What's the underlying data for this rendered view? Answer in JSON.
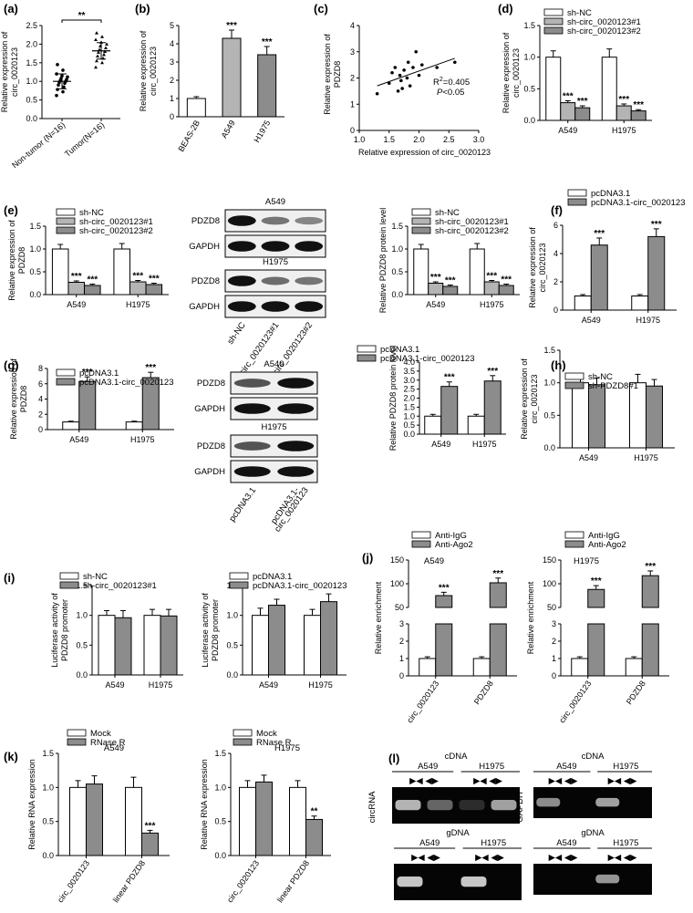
{
  "palette": {
    "white": "#ffffff",
    "light": "#b4b4b4",
    "dark": "#8c8c8c",
    "axis": "#000000",
    "gel_bg": "#050505",
    "band": "#dcdcdc"
  },
  "charts": {
    "a": {
      "type": "scatter",
      "panel": "(a)",
      "categories": [
        "Non-tumor (N=16)",
        "Tumor(N=16)"
      ],
      "ylabel": "Relative expression of circ_0020123",
      "yticks": [
        0,
        0.5,
        1.0,
        1.5,
        2.0,
        2.5
      ],
      "ylim": [
        0,
        2.5
      ],
      "means": [
        1.0,
        1.82
      ],
      "sd": [
        0.2,
        0.22
      ],
      "points": [
        [
          0.62,
          0.72,
          0.78,
          0.85,
          0.9,
          0.95,
          0.97,
          1.0,
          1.02,
          1.05,
          1.08,
          1.12,
          1.15,
          1.2,
          1.3,
          1.45
        ],
        [
          1.38,
          1.5,
          1.55,
          1.62,
          1.68,
          1.72,
          1.78,
          1.8,
          1.85,
          1.9,
          1.95,
          2.0,
          2.05,
          2.12,
          2.2,
          2.3
        ]
      ],
      "sig": [
        "**"
      ]
    },
    "b": {
      "type": "bar",
      "panel": "(b)",
      "categories": [
        "BEAS-2B",
        "A549",
        "H1975"
      ],
      "values": [
        1.0,
        4.3,
        3.4
      ],
      "errors": [
        0.1,
        0.45,
        0.45
      ],
      "colors": [
        "white",
        "light",
        "dark"
      ],
      "ylabel": "Relative expression of circ_0020123",
      "yticks": [
        0,
        1,
        2,
        3,
        4,
        5
      ],
      "ylim": [
        0,
        5
      ],
      "sig": [
        "",
        "***",
        "***"
      ]
    },
    "c": {
      "type": "scatter",
      "panel": "(c)",
      "xlabel": "Relative expression of circ_0020123",
      "ylabel": "Relative expression of PDZD8",
      "xticks": [
        1.0,
        1.5,
        2.0,
        2.5,
        3.0
      ],
      "yticks": [
        0,
        1,
        2,
        3,
        4
      ],
      "xlim": [
        1.0,
        3.0
      ],
      "ylim": [
        0,
        4
      ],
      "points": [
        [
          1.3,
          1.4
        ],
        [
          1.5,
          1.8
        ],
        [
          1.55,
          2.2
        ],
        [
          1.6,
          2.4
        ],
        [
          1.65,
          1.5
        ],
        [
          1.68,
          2.1
        ],
        [
          1.7,
          1.9
        ],
        [
          1.72,
          1.6
        ],
        [
          1.75,
          2.3
        ],
        [
          1.8,
          2.0
        ],
        [
          1.82,
          2.6
        ],
        [
          1.85,
          1.7
        ],
        [
          1.9,
          2.4
        ],
        [
          1.95,
          3.0
        ],
        [
          2.0,
          2.1
        ],
        [
          2.05,
          2.5
        ],
        [
          2.3,
          2.4
        ],
        [
          2.6,
          2.6
        ]
      ],
      "fit": [
        [
          1.3,
          1.7
        ],
        [
          2.6,
          2.75
        ]
      ],
      "r2_prefix": "R",
      "r2_sup": "2",
      "r2_value": "=0.405",
      "p_italic": "P",
      "p_rest": "<0.05"
    },
    "d": {
      "type": "bar",
      "panel": "(d)",
      "categories": [
        "A549",
        "H1975"
      ],
      "ylabel": "Relative expression of circ_0020123",
      "yticks": [
        0,
        0.5,
        1.0,
        1.5
      ],
      "ylim": [
        0,
        1.5
      ],
      "series": [
        {
          "name": "sh-NC",
          "values": [
            1.0,
            1.0
          ],
          "errors": [
            0.1,
            0.13
          ],
          "color": "white",
          "sig": [
            "",
            ""
          ]
        },
        {
          "name": "sh-circ_0020123#1",
          "values": [
            0.28,
            0.23
          ],
          "errors": [
            0.03,
            0.03
          ],
          "color": "light",
          "sig": [
            "***",
            "***"
          ]
        },
        {
          "name": "sh-circ_0020123#2",
          "values": [
            0.2,
            0.15
          ],
          "errors": [
            0.03,
            0.02
          ],
          "color": "dark",
          "sig": [
            "***",
            "***"
          ]
        }
      ]
    },
    "e1": {
      "type": "bar",
      "panel": "(e)",
      "categories": [
        "A549",
        "H1975"
      ],
      "ylabel": "Relative expression of PDZD8",
      "yticks": [
        0,
        0.5,
        1.0,
        1.5
      ],
      "ylim": [
        0,
        1.5
      ],
      "series": [
        {
          "name": "sh-NC",
          "values": [
            1.0,
            1.0
          ],
          "errors": [
            0.1,
            0.12
          ],
          "color": "white",
          "sig": [
            "",
            ""
          ]
        },
        {
          "name": "sh-circ_0020123#1",
          "values": [
            0.27,
            0.28
          ],
          "errors": [
            0.03,
            0.03
          ],
          "color": "light",
          "sig": [
            "***",
            "***"
          ]
        },
        {
          "name": "sh-circ_0020123#2",
          "values": [
            0.2,
            0.22
          ],
          "errors": [
            0.03,
            0.03
          ],
          "color": "dark",
          "sig": [
            "***",
            "***"
          ]
        }
      ]
    },
    "e2": {
      "type": "bar",
      "panel": "",
      "categories": [
        "A549",
        "H1975"
      ],
      "ylabel": "Relative PDZD8 protein level",
      "yticks": [
        0,
        0.5,
        1.0,
        1.5
      ],
      "ylim": [
        0,
        1.5
      ],
      "series": [
        {
          "name": "sh-NC",
          "values": [
            1.0,
            1.0
          ],
          "errors": [
            0.1,
            0.12
          ],
          "color": "white",
          "sig": [
            "",
            ""
          ]
        },
        {
          "name": "sh-circ_0020123#1",
          "values": [
            0.25,
            0.28
          ],
          "errors": [
            0.03,
            0.03
          ],
          "color": "light",
          "sig": [
            "***",
            "***"
          ]
        },
        {
          "name": "sh-circ_0020123#2",
          "values": [
            0.18,
            0.2
          ],
          "errors": [
            0.03,
            0.03
          ],
          "color": "dark",
          "sig": [
            "***",
            "***"
          ]
        }
      ]
    },
    "f": {
      "type": "bar",
      "panel": "(f)",
      "categories": [
        "A549",
        "H1975"
      ],
      "ylabel": "Relative expression of circ_0020123",
      "yticks": [
        0,
        2,
        4,
        6
      ],
      "ylim": [
        0,
        6
      ],
      "series": [
        {
          "name": "pcDNA3.1",
          "values": [
            1.0,
            1.0
          ],
          "errors": [
            0.1,
            0.1
          ],
          "color": "white",
          "sig": [
            "",
            ""
          ]
        },
        {
          "name": "pcDNA3.1-circ_0020123",
          "values": [
            4.6,
            5.2
          ],
          "errors": [
            0.5,
            0.55
          ],
          "color": "dark",
          "sig": [
            "***",
            "***"
          ]
        }
      ]
    },
    "g1": {
      "type": "bar",
      "panel": "(g)",
      "categories": [
        "A549",
        "H1975"
      ],
      "ylabel": "Relative expression of PDZD8",
      "yticks": [
        0,
        2,
        4,
        6,
        8
      ],
      "ylim": [
        0,
        8
      ],
      "series": [
        {
          "name": "pcDNA3.1",
          "values": [
            1.0,
            1.0
          ],
          "errors": [
            0.1,
            0.1
          ],
          "color": "white",
          "sig": [
            "",
            ""
          ]
        },
        {
          "name": "pcDNA3.1-circ_0020123",
          "values": [
            6.3,
            6.8
          ],
          "errors": [
            0.6,
            0.7
          ],
          "color": "dark",
          "sig": [
            "***",
            "***"
          ]
        }
      ]
    },
    "g2": {
      "type": "bar",
      "panel": "",
      "categories": [
        "A549",
        "H1975"
      ],
      "ylabel": "Relative PDZD8 protein level",
      "yticks": [
        0,
        0.5,
        1.0,
        1.5,
        2.0,
        2.5,
        3.0,
        3.5,
        4.0
      ],
      "ylim": [
        0,
        4
      ],
      "series": [
        {
          "name": "pcDNA3.1",
          "values": [
            1.0,
            1.0
          ],
          "errors": [
            0.1,
            0.1
          ],
          "color": "white",
          "sig": [
            "",
            ""
          ]
        },
        {
          "name": "pcDNA3.1-circ_0020123",
          "values": [
            2.65,
            2.95
          ],
          "errors": [
            0.25,
            0.3
          ],
          "color": "dark",
          "sig": [
            "***",
            "***"
          ]
        }
      ]
    },
    "h": {
      "type": "bar",
      "panel": "(h)",
      "categories": [
        "A549",
        "H1975"
      ],
      "ylabel": "Relative expression of circ_0020123",
      "yticks": [
        0,
        0.5,
        1.0,
        1.5
      ],
      "ylim": [
        0,
        1.5
      ],
      "series": [
        {
          "name": "sh-NC",
          "values": [
            1.0,
            1.0
          ],
          "errors": [
            0.12,
            0.13
          ],
          "color": "white",
          "sig": [
            "",
            ""
          ]
        },
        {
          "name": "sh-PDZD8#1",
          "values": [
            0.97,
            0.95
          ],
          "errors": [
            0.1,
            0.1
          ],
          "color": "dark",
          "sig": [
            "",
            ""
          ]
        }
      ]
    },
    "i1": {
      "type": "bar",
      "panel": "(i)",
      "categories": [
        "A549",
        "H1975"
      ],
      "ylabel": "Luciferase activity of PDZD8 promoter",
      "yticks": [
        0,
        0.5,
        1.0,
        1.5
      ],
      "ylim": [
        0,
        1.5
      ],
      "series": [
        {
          "name": "sh-NC",
          "values": [
            1.0,
            1.0
          ],
          "errors": [
            0.08,
            0.1
          ],
          "color": "white",
          "sig": [
            "",
            ""
          ]
        },
        {
          "name": "sh-circ_0020123#1",
          "values": [
            0.96,
            0.99
          ],
          "errors": [
            0.12,
            0.11
          ],
          "color": "dark",
          "sig": [
            "",
            ""
          ]
        }
      ]
    },
    "i2": {
      "type": "bar",
      "panel": "",
      "categories": [
        "A549",
        "H1975"
      ],
      "ylabel": "Luciferase activity of PDZD8 promoter",
      "yticks": [
        0,
        0.5,
        1.0,
        1.5
      ],
      "ylim": [
        0,
        1.5
      ],
      "series": [
        {
          "name": "pcDNA3.1",
          "values": [
            1.0,
            1.0
          ],
          "errors": [
            0.12,
            0.1
          ],
          "color": "white",
          "sig": [
            "",
            ""
          ]
        },
        {
          "name": "pcDNA3.1-circ_0020123",
          "values": [
            1.17,
            1.23
          ],
          "errors": [
            0.1,
            0.13
          ],
          "color": "dark",
          "sig": [
            "",
            ""
          ]
        }
      ]
    },
    "j1": {
      "type": "bar",
      "panel": "(j)",
      "title": "A549",
      "categories": [
        "circ_0020123",
        "PDZD8"
      ],
      "ylabel": "Relative enrichment",
      "ylim_low": [
        0,
        3
      ],
      "ylim_high": [
        50,
        150
      ],
      "yticks_low": [
        0,
        1,
        2,
        3
      ],
      "yticks_high": [
        50,
        100,
        150
      ],
      "series": [
        {
          "name": "Anti-IgG",
          "values": [
            1.0,
            1.0
          ],
          "errors": [
            0.1,
            0.1
          ],
          "color": "white",
          "sig": [
            "",
            ""
          ]
        },
        {
          "name": "Anti-Ago2",
          "values": [
            75,
            102
          ],
          "errors": [
            7,
            10
          ],
          "color": "dark",
          "sig": [
            "***",
            "***"
          ]
        }
      ]
    },
    "j2": {
      "type": "bar",
      "panel": "",
      "title": "H1975",
      "categories": [
        "circ_0020123",
        "PDZD8"
      ],
      "ylabel": "Relative enrichment",
      "ylim_low": [
        0,
        3
      ],
      "ylim_high": [
        50,
        150
      ],
      "yticks_low": [
        0,
        1,
        2,
        3
      ],
      "yticks_high": [
        50,
        100,
        150
      ],
      "series": [
        {
          "name": "Anti-IgG",
          "values": [
            1.0,
            1.0
          ],
          "errors": [
            0.1,
            0.1
          ],
          "color": "white",
          "sig": [
            "",
            ""
          ]
        },
        {
          "name": "Anti-Ago2",
          "values": [
            88,
            117
          ],
          "errors": [
            8,
            10
          ],
          "color": "dark",
          "sig": [
            "***",
            "***"
          ]
        }
      ]
    },
    "k1": {
      "type": "bar",
      "panel": "(k)",
      "title": "A549",
      "categories": [
        "circ_0020123",
        "linear PDZD8"
      ],
      "ylabel": "Relative RNA expression",
      "yticks": [
        0,
        0.5,
        1.0,
        1.5
      ],
      "ylim": [
        0,
        1.5
      ],
      "series": [
        {
          "name": "Mock",
          "values": [
            1.0,
            1.0
          ],
          "errors": [
            0.1,
            0.15
          ],
          "color": "white",
          "sig": [
            "",
            ""
          ]
        },
        {
          "name": "RNase R",
          "values": [
            1.05,
            0.33
          ],
          "errors": [
            0.12,
            0.04
          ],
          "color": "dark",
          "sig": [
            "",
            "***"
          ]
        }
      ]
    },
    "k2": {
      "type": "bar",
      "panel": "",
      "title": "H1975",
      "categories": [
        "circ_0020123",
        "linear PDZD8"
      ],
      "ylabel": "Relative RNA expression",
      "yticks": [
        0,
        0.5,
        1.0,
        1.5
      ],
      "ylim": [
        0,
        1.5
      ],
      "series": [
        {
          "name": "Mock",
          "values": [
            1.0,
            1.0
          ],
          "errors": [
            0.1,
            0.1
          ],
          "color": "white",
          "sig": [
            "",
            ""
          ]
        },
        {
          "name": "RNase R",
          "values": [
            1.08,
            0.53
          ],
          "errors": [
            0.1,
            0.05
          ],
          "color": "dark",
          "sig": [
            "",
            "**"
          ]
        }
      ]
    }
  },
  "blots": {
    "e": {
      "cells": [
        "A549",
        "H1975"
      ],
      "rows": [
        "PDZD8",
        "GAPDH"
      ],
      "lanes": [
        "sh-NC",
        "sh-circ_0020123#1",
        "sh-circ_0020123#2"
      ],
      "intensity": [
        [
          1.0,
          0.4,
          0.3
        ],
        [
          1.0,
          1.0,
          1.0
        ],
        [
          1.0,
          0.45,
          0.4
        ],
        [
          1.0,
          1.0,
          1.0
        ]
      ]
    },
    "g": {
      "cells": [
        "A549",
        "H1975"
      ],
      "rows": [
        "PDZD8",
        "GAPDH"
      ],
      "lanes": [
        "pcDNA3.1",
        "pcDNA3.1-\ncirc_0020123"
      ],
      "intensity": [
        [
          0.6,
          1.0
        ],
        [
          1.0,
          1.0
        ],
        [
          0.6,
          1.0
        ],
        [
          1.0,
          1.0
        ]
      ]
    }
  },
  "gel_panel": {
    "label": "(l)",
    "side_labels": [
      "circRNA",
      "GAPDH"
    ],
    "section_titles": [
      "cDNA",
      "gDNA"
    ],
    "cells": [
      "A549",
      "H1975"
    ],
    "primer_glyphs": "▶◀ ◀▶"
  }
}
